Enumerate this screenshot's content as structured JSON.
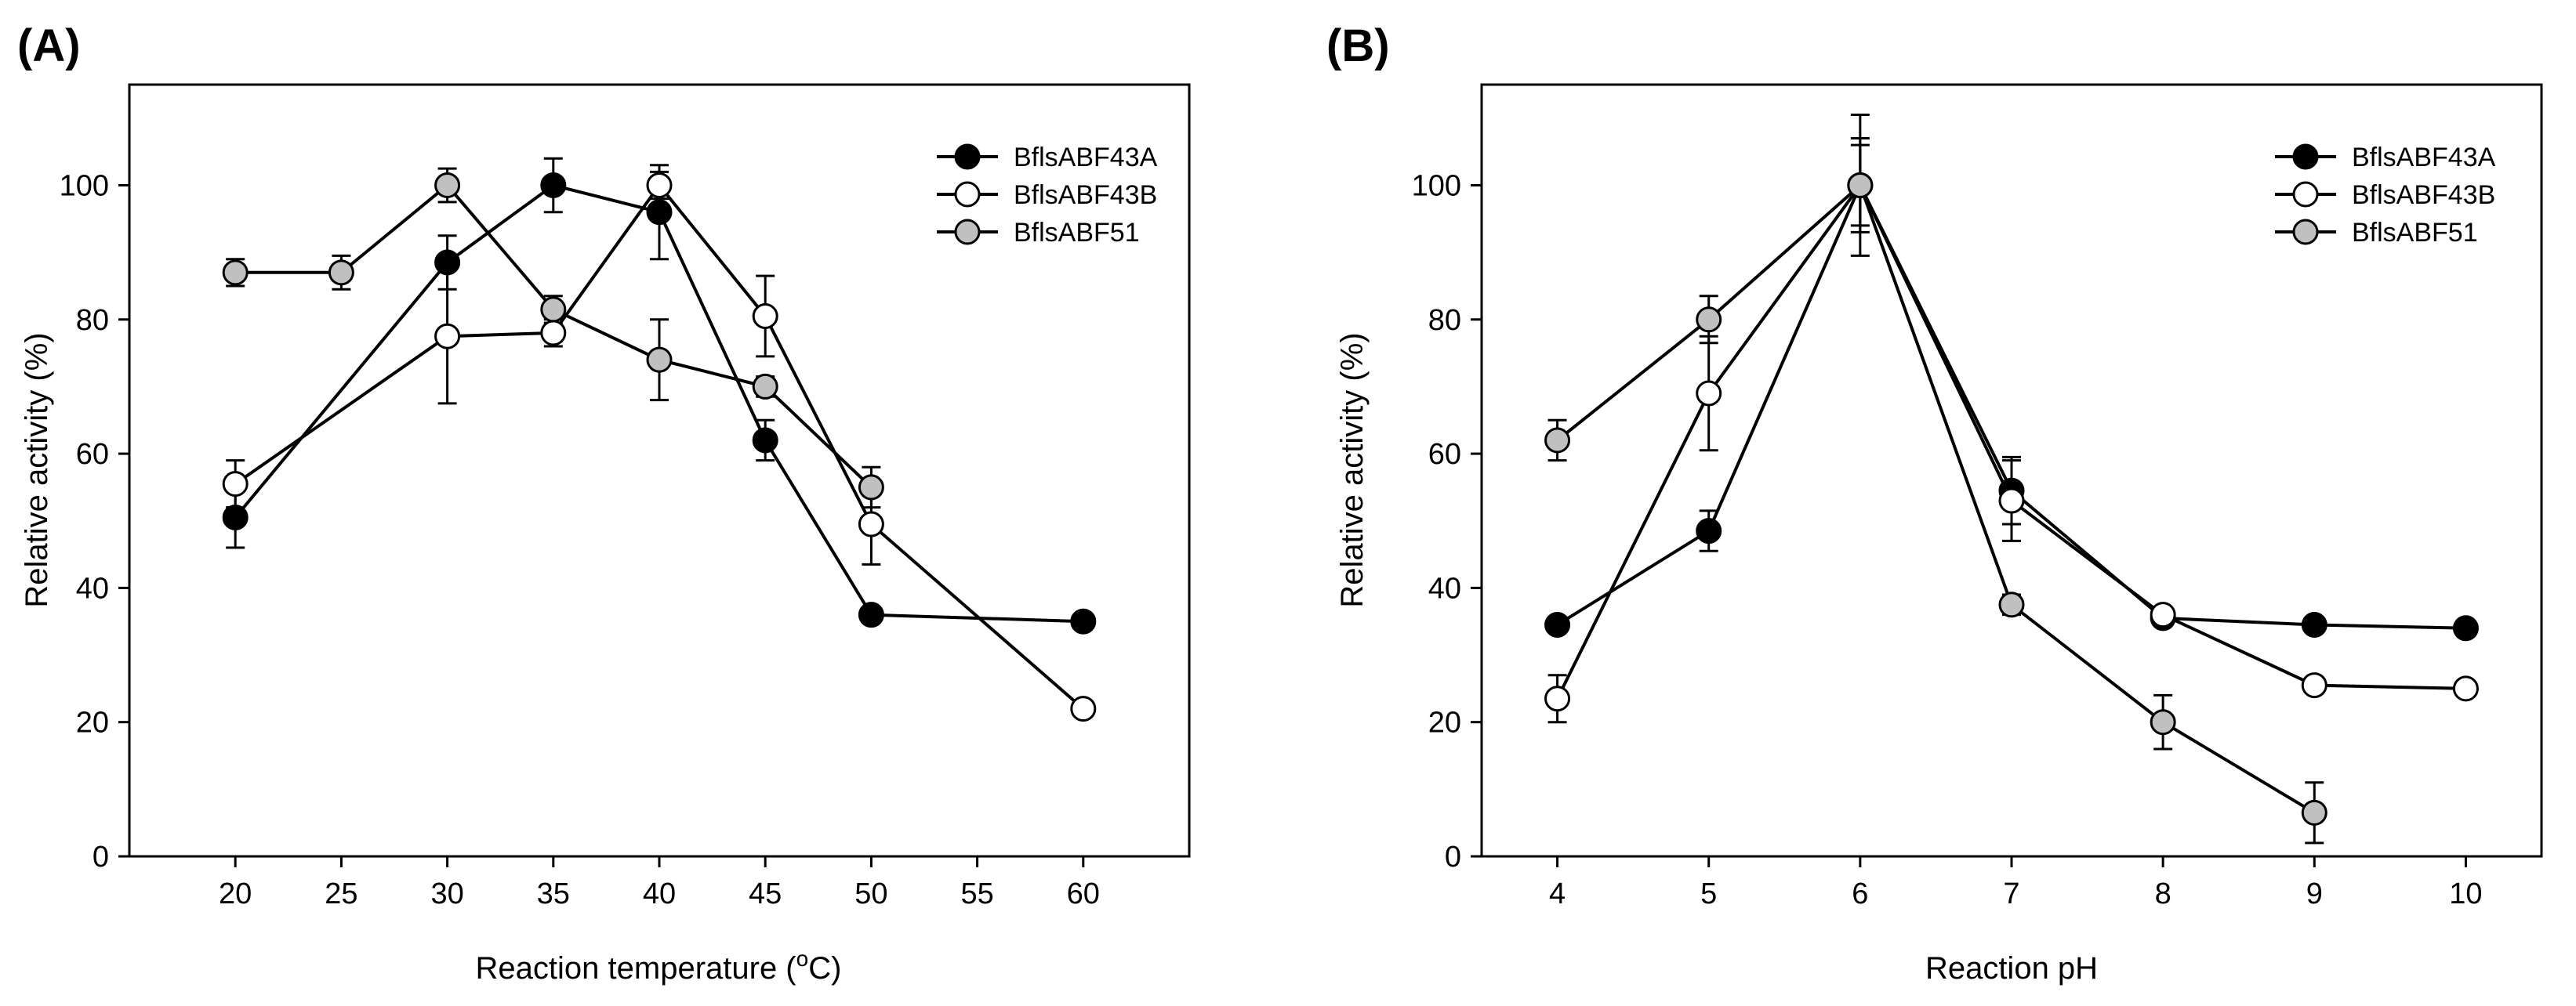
{
  "chart_data": [
    {
      "type": "line",
      "panel_label": "(A)",
      "xlabel": "Reaction temperature (",
      "xlabel_sup": "o",
      "xlabel_unit": "C)",
      "ylabel": "Relative activity (%)",
      "xlim": [
        15,
        65
      ],
      "ylim": [
        0,
        115
      ],
      "xticks": [
        "20",
        "25",
        "30",
        "35",
        "40",
        "45",
        "50",
        "55",
        "60"
      ],
      "yticks": [
        "0",
        "20",
        "40",
        "60",
        "80",
        "100"
      ],
      "grid": false,
      "legend_position": "top-right",
      "series": [
        {
          "name": "BflsABF43A",
          "marker": "filled-black",
          "x": [
            20,
            30,
            35,
            40,
            45,
            50,
            60
          ],
          "y": [
            50.5,
            88.5,
            100,
            96,
            62,
            36,
            35
          ],
          "err": [
            4.5,
            4,
            4,
            7,
            3,
            1,
            1
          ]
        },
        {
          "name": "BflsABF43B",
          "marker": "open-white",
          "x": [
            20,
            30,
            35,
            40,
            45,
            50,
            60
          ],
          "y": [
            55.5,
            77.5,
            78,
            100,
            80.5,
            49.5,
            22
          ],
          "err": [
            3.5,
            10,
            2,
            2,
            6,
            6,
            1
          ]
        },
        {
          "name": "BflsABF51",
          "marker": "filled-gray",
          "x": [
            20,
            25,
            30,
            35,
            40,
            45,
            50
          ],
          "y": [
            87,
            87,
            100,
            81.5,
            74,
            70,
            55
          ],
          "err": [
            2,
            2.5,
            2.5,
            2,
            6,
            1.5,
            3
          ]
        }
      ]
    },
    {
      "type": "line",
      "panel_label": "(B)",
      "xlabel": "Reaction pH",
      "ylabel": "Relative activity (%)",
      "xlim": [
        3.5,
        10.5
      ],
      "ylim": [
        0,
        115
      ],
      "xticks": [
        "4",
        "5",
        "6",
        "7",
        "8",
        "9",
        "10"
      ],
      "yticks": [
        "0",
        "20",
        "40",
        "60",
        "80",
        "100"
      ],
      "grid": false,
      "legend_position": "top-right",
      "series": [
        {
          "name": "BflsABF43A",
          "marker": "filled-black",
          "x": [
            4,
            5,
            6,
            7,
            8,
            9,
            10
          ],
          "y": [
            34.5,
            48.5,
            100,
            54.5,
            35.5,
            34.5,
            34
          ],
          "err": [
            1,
            3,
            7,
            5,
            1,
            1,
            1
          ]
        },
        {
          "name": "BflsABF43B",
          "marker": "open-white",
          "x": [
            4,
            5,
            6,
            7,
            8,
            9,
            10
          ],
          "y": [
            23.5,
            69,
            100,
            53,
            36,
            25.5,
            25
          ],
          "err": [
            3.5,
            8.5,
            10.5,
            6,
            1,
            1,
            1
          ]
        },
        {
          "name": "BflsABF51",
          "marker": "filled-gray",
          "x": [
            4,
            5,
            6,
            7,
            8,
            9
          ],
          "y": [
            62,
            80,
            100,
            37.5,
            20,
            6.5
          ],
          "err": [
            3,
            3.5,
            6,
            1.5,
            4,
            4.5
          ]
        }
      ]
    }
  ],
  "colors": {
    "filled-black": "#000000",
    "open-white": "#ffffff",
    "filled-gray": "#c0c0c0",
    "line": "#000000"
  }
}
